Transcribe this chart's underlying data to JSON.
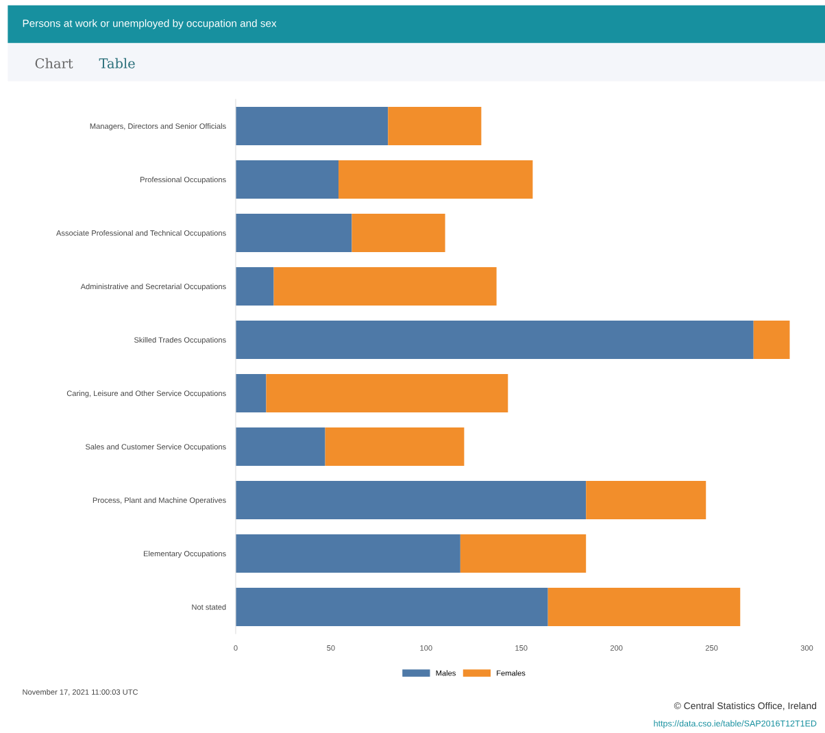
{
  "chart_data": {
    "type": "bar",
    "orientation": "horizontal",
    "stacked": true,
    "title": "Persons at work or unemployed by occupation and sex",
    "categories": [
      "Managers, Directors and Senior Officials",
      "Professional Occupations",
      "Associate Professional and Technical Occupations",
      "Administrative and Secretarial Occupations",
      "Skilled Trades Occupations",
      "Caring, Leisure and Other Service Occupations",
      "Sales and Customer Service Occupations",
      "Process, Plant and Machine Operatives",
      "Elementary Occupations",
      "Not stated"
    ],
    "series": [
      {
        "name": "Males",
        "color": "#4e79a7",
        "values": [
          80,
          54,
          61,
          20,
          272,
          16,
          47,
          184,
          118,
          164
        ]
      },
      {
        "name": "Females",
        "color": "#f28e2b",
        "values": [
          49,
          102,
          49,
          117,
          19,
          127,
          73,
          63,
          66,
          101
        ]
      }
    ],
    "xlim": [
      0,
      300
    ],
    "xticks": [
      0,
      50,
      100,
      150,
      200,
      250,
      300
    ],
    "legend": "bottom",
    "annotations": [
      "Chart",
      "Table",
      "November 17, 2021 11:00:03 UTC",
      "© Central Statistics Office, Ireland",
      "https://data.cso.ie/table/SAP2016T12T1ED"
    ]
  }
}
